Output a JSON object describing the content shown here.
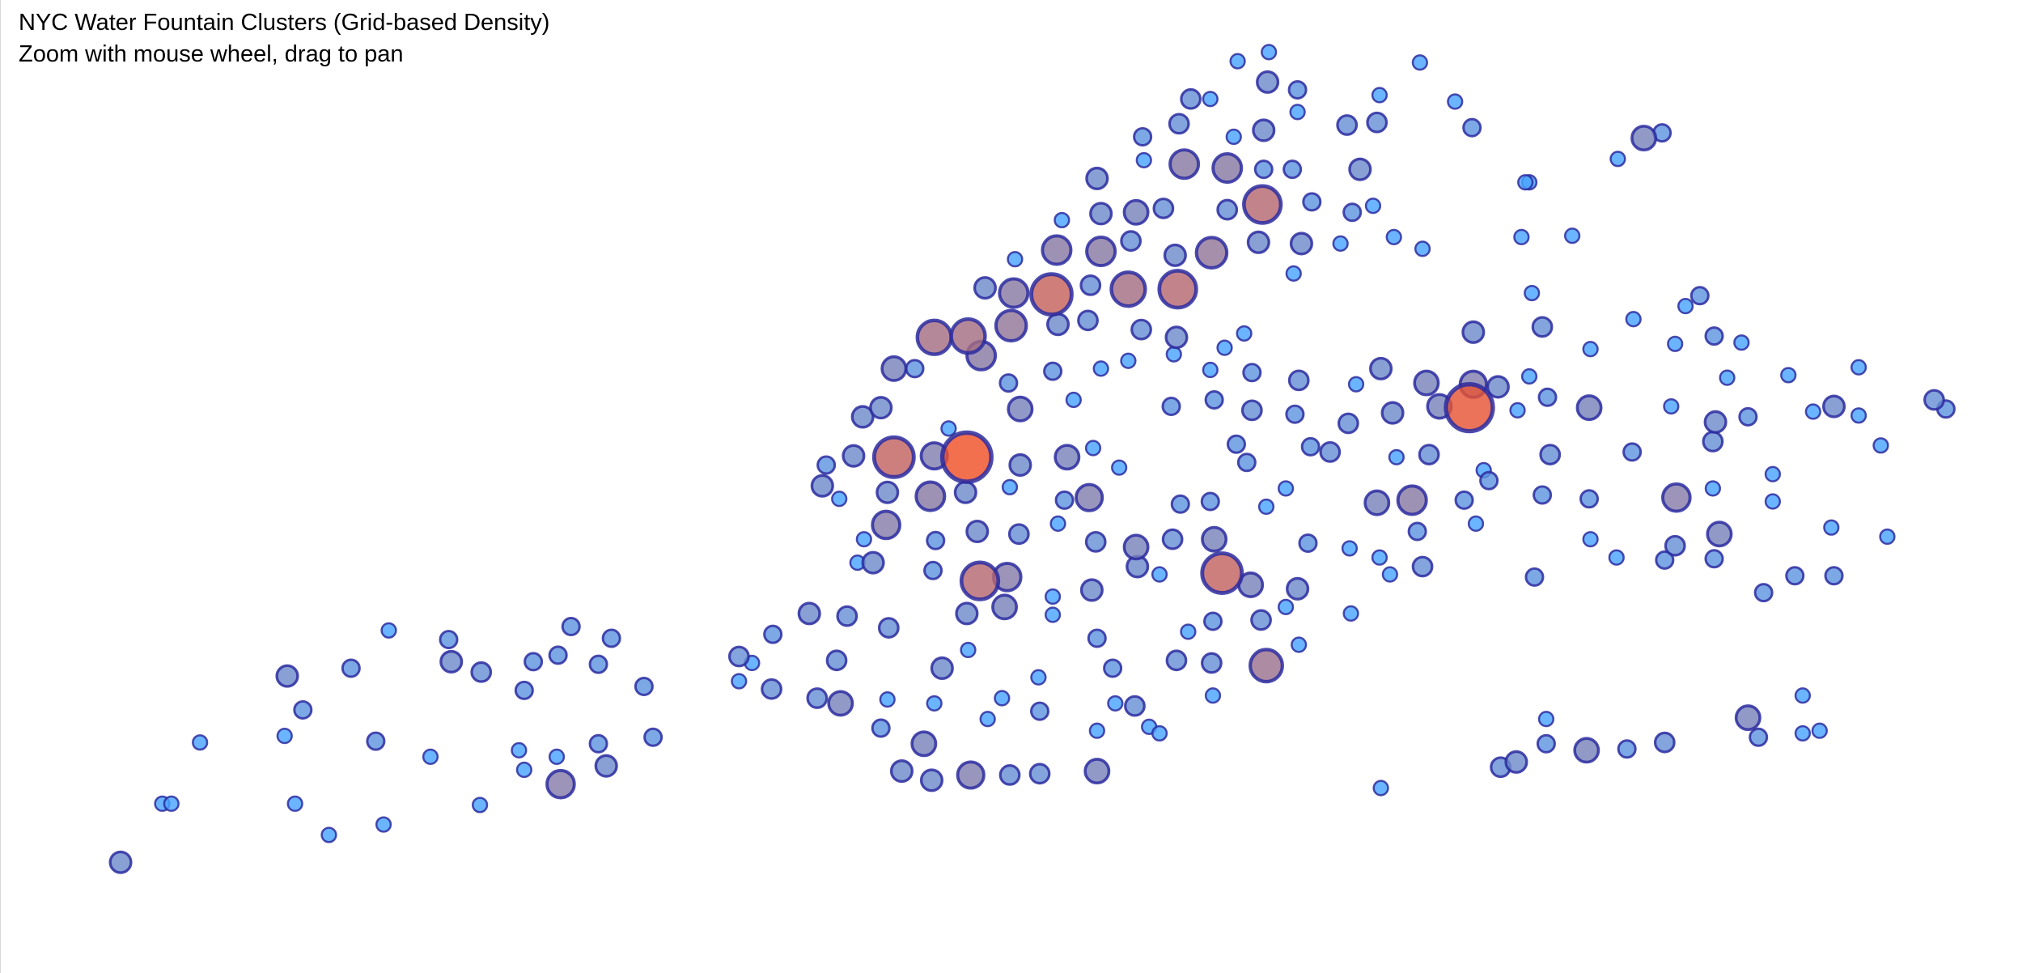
{
  "chart_data": {
    "type": "bubble",
    "title": "NYC Water Fountain Clusters (Grid-based Density)",
    "subtitle": "Zoom with mouse wheel, drag to pan",
    "xlim": [
      -74.3,
      -73.68
    ],
    "ylim": [
      40.6212,
      40.92
    ],
    "colormap": [
      "#4aa3ff",
      "#8c78a0",
      "#f05028"
    ],
    "edge_color": "#2b2ba0",
    "x": [
      -74.2632,
      -74.2504,
      -74.2476,
      -74.2388,
      -74.212,
      -74.2072,
      -74.2128,
      -74.2096,
      -74.1992,
      -74.1924,
      -74.1848,
      -74.1824,
      -74.1808,
      -74.168,
      -74.1624,
      -74.1616,
      -74.1524,
      -74.1528,
      -74.1408,
      -74.1392,
      -74.1392,
      -74.1364,
      -74.1292,
      -74.1288,
      -74.128,
      -74.1248,
      -74.1164,
      -74.1164,
      -74.114,
      -74.1124,
      -74.1024,
      -74.0996,
      -74.0732,
      -74.0732,
      -74.0692,
      -74.0632,
      -74.0628,
      -74.0516,
      -74.0492,
      -74.042,
      -74.0432,
      -74.04,
      -74.0296,
      -74.0276,
      -74.0272,
      -74.0232,
      -74.0164,
      -74.014,
      -74.0132,
      -74.0108,
      -74.0028,
      -74.002,
      -73.9968,
      -73.9924,
      -73.99,
      -73.9812,
      -73.9808,
      -73.9808,
      -73.9768,
      -73.9768,
      -73.9632,
      -73.9632,
      -73.9632,
      -73.9584,
      -73.9576,
      -73.9516,
      -73.9472,
      -73.944,
      -73.9388,
      -73.9352,
      -73.928,
      -73.9276,
      -73.9276,
      -73.9112,
      -73.9012,
      -74.0476,
      -74.0464,
      -74.0424,
      -74.038,
      -74.0352,
      -74.0296,
      -74.0256,
      -74.0276,
      -74.028,
      -74.0348,
      -74.0368,
      -74.032,
      -74.0256,
      -74.0192,
      -74.0132,
      -74.0028,
      -73.9988,
      -73.9896,
      -73.9976,
      -73.9884,
      -73.9888,
      -73.9772,
      -73.9752,
      -73.9756,
      -73.974,
      -73.9652,
      -73.962,
      -73.962,
      -73.9632,
      -73.966,
      -73.9536,
      -73.9528,
      -73.9512,
      -73.9492,
      -73.9488,
      -73.9428,
      -73.9384,
      -73.9392,
      -73.9388,
      -73.9496,
      -73.938,
      -73.9364,
      -73.9344,
      -73.9284,
      -73.928,
      -73.9232,
      -73.9232,
      -73.9212,
      -73.9124,
      -73.9136,
      -73.912,
      -73.912,
      -73.9108,
      -73.9104,
      -73.92,
      -73.9032,
      -73.9016,
      -73.9016,
      -73.9004,
      -73.9028,
      -73.8972,
      -73.8884,
      -73.8864,
      -73.8824,
      -73.8848,
      -73.8784,
      -73.8772,
      -73.8764,
      -73.872,
      -73.864,
      -73.8632,
      -73.8532,
      -73.848,
      -73.7952,
      -73.7896,
      -73.8032,
      -73.8304,
      -73.8316,
      -74.0132,
      -74.0088,
      -74.0032,
      -74.0036,
      -74.0144,
      -74.0128,
      -74.0136,
      -74.0,
      -73.9992,
      -73.9908,
      -73.9916,
      -74.0032,
      -73.99,
      -73.9868,
      -73.9868,
      -73.9872,
      -73.9904,
      -73.9768,
      -73.9704,
      -73.9724,
      -73.9656,
      -73.9732,
      -73.9752,
      -73.9644,
      -73.9564,
      -73.9636,
      -73.9648,
      -73.962,
      -73.9536,
      -73.9512,
      -73.9508,
      -73.944,
      -73.9404,
      -73.9396,
      -73.9376,
      -73.94,
      -73.9284,
      -73.9272,
      -73.9248,
      -73.916,
      -73.9128,
      -73.9052,
      -73.9016,
      -73.8984,
      -73.9272,
      -73.9284,
      -73.924,
      -73.918,
      -73.9156,
      -73.9156,
      -73.9204,
      -73.9172,
      -73.9112,
      -73.9052,
      -73.9024,
      -73.9012,
      -73.8976,
      -73.8916,
      -73.886,
      -73.8836,
      -73.876,
      -73.8724,
      -73.8712,
      -73.8772,
      -73.8664,
      -73.8612,
      -73.862,
      -73.858,
      -73.8488,
      -73.8476,
      -73.84,
      -73.8476,
      -73.8504,
      -73.8444,
      -73.8428,
      -73.8468,
      -73.8648,
      -73.8632,
      -73.8732,
      -73.8764,
      -73.8856,
      -73.8852,
      -73.876,
      -73.834,
      -73.8304,
      -73.8296,
      -73.8264,
      -73.8248,
      -73.824,
      -73.8264,
      -73.8288,
      -73.8172,
      -73.8328,
      -73.812,
      -73.8116,
      -73.812,
      -73.8116,
      -73.8036,
      -73.7988,
      -73.7984,
      -73.7888,
      -73.7856,
      -73.7852,
      -73.7868,
      -73.7856,
      -73.7824,
      -73.778,
      -73.7736,
      -73.7732,
      -73.774,
      -73.774,
      -73.7736,
      -73.772,
      -73.7652,
      -73.7632,
      -73.7696,
      -73.7556,
      -73.7556,
      -73.7584,
      -73.7508,
      -73.7488,
      -73.7432,
      -73.7376,
      -73.7368,
      -73.7368,
      -73.7292,
      -73.7292,
      -73.7224,
      -73.7204,
      -73.706,
      -73.7024,
      -73.7632,
      -73.76,
      -73.7464,
      -73.7464,
      -73.7412,
      -73.7888,
      -73.8004,
      -73.8128,
      -73.8252,
      -73.8252,
      -73.8344,
      -73.8392
    ],
    "y": [
      40.6552,
      40.6732,
      40.6732,
      40.692,
      40.7124,
      40.702,
      40.694,
      40.6732,
      40.6636,
      40.7148,
      40.6924,
      40.6668,
      40.7264,
      40.6876,
      40.7236,
      40.7168,
      40.7136,
      40.6728,
      40.6896,
      40.6836,
      40.708,
      40.7168,
      40.6876,
      40.7188,
      40.6792,
      40.7276,
      40.716,
      40.6916,
      40.6848,
      40.724,
      40.7092,
      40.6936,
      40.7184,
      40.7108,
      40.7164,
      40.7084,
      40.7252,
      40.7316,
      40.7056,
      40.704,
      40.7172,
      40.7308,
      40.6964,
      40.7052,
      40.7272,
      40.6832,
      40.6916,
      40.6804,
      40.704,
      40.7148,
      40.7204,
      40.682,
      40.6992,
      40.7056,
      40.682,
      40.712,
      40.7016,
      40.6824,
      40.7312,
      40.7368,
      40.6832,
      40.724,
      40.6956,
      40.7148,
      40.704,
      40.7032,
      40.6968,
      40.6948,
      40.7172,
      40.726,
      40.7164,
      40.7064,
      40.7292,
      40.7156,
      40.722,
      40.7708,
      40.7772,
      40.7668,
      40.78,
      40.792,
      40.7948,
      40.7796,
      40.7688,
      40.7588,
      40.7544,
      40.7472,
      40.7472,
      40.8068,
      40.8068,
      40.8164,
      40.8168,
      40.8108,
      40.82,
      40.8316,
      40.8404,
      40.83,
      40.8296,
      40.8204,
      40.8432,
      40.8524,
      40.8324,
      40.8428,
      40.8544,
      40.8652,
      40.8216,
      40.8312,
      40.846,
      40.8548,
      40.878,
      40.8708,
      40.856,
      40.8312,
      40.8416,
      40.8164,
      40.8188,
      40.882,
      40.8696,
      40.8896,
      40.8896,
      40.8424,
      40.8684,
      40.8556,
      40.878,
      40.8572,
      40.8456,
      40.868,
      40.88,
      40.8948,
      40.904,
      40.9012,
      40.868,
      40.8924,
      40.8856,
      40.8452,
      40.836,
      40.858,
      40.8452,
      40.8816,
      40.868,
      40.8548,
      40.8568,
      40.8824,
      40.8908,
      40.8472,
      40.9008,
      40.8436,
      40.8888,
      40.8808,
      40.8776,
      40.8792,
      40.8712,
      40.864,
      40.864,
      40.78,
      40.7884,
      40.7796,
      40.7688,
      40.7676,
      40.754,
      40.7448,
      40.7568,
      40.7416,
      40.7428,
      40.7336,
      40.7316,
      40.7704,
      40.7772,
      40.7944,
      40.756,
      40.8024,
      40.806,
      40.7972,
      40.7796,
      40.7672,
      40.7664,
      40.7592,
      40.7824,
      40.7764,
      40.7536,
      40.7388,
      40.8068,
      40.8092,
      40.752,
      40.746,
      40.7436,
      40.7952,
      40.8112,
      40.7652,
      40.7544,
      40.766,
      40.7544,
      40.744,
      40.7404,
      40.7296,
      40.7336,
      40.7392,
      40.7532,
      40.7972,
      40.8064,
      40.8132,
      40.8176,
      40.8056,
      40.794,
      40.7836,
      40.778,
      40.7644,
      40.77,
      40.7928,
      40.8032,
      40.7828,
      40.7812,
      40.79,
      40.802,
      40.8068,
      40.7932,
      40.7796,
      40.7656,
      40.7664,
      40.7804,
      40.8024,
      40.7952,
      40.7948,
      40.802,
      40.8012,
      40.818,
      40.7664,
      40.7756,
      40.7724,
      40.7592,
      40.7568,
      40.746,
      40.7436,
      40.7488,
      40.7516,
      40.7316,
      40.678,
      40.794,
      40.8044,
      40.83,
      40.8196,
      40.798,
      40.7804,
      40.768,
      40.7428,
      40.8476,
      40.8472,
      40.7948,
      40.8128,
      40.7668,
      40.7544,
      40.7488,
      40.7812,
      40.822,
      40.748,
      40.7524,
      40.7672,
      40.7952,
      40.8144,
      40.826,
      40.8292,
      40.8168,
      40.7904,
      40.7844,
      40.77,
      40.7484,
      40.756,
      40.8148,
      40.792,
      40.804,
      40.7744,
      40.766,
      40.738,
      40.8048,
      40.7432,
      40.7936,
      40.758,
      40.7432,
      40.7952,
      40.8072,
      40.7924,
      40.7832,
      40.7552,
      40.7972,
      40.7944,
      40.6996,
      40.6936,
      40.7064,
      40.6948,
      40.6956,
      40.692,
      40.69,
      40.6896,
      40.6916,
      40.6992,
      40.686,
      40.6844
    ],
    "sizes": [
      4,
      1,
      1,
      1,
      4,
      2,
      1,
      1,
      1,
      2,
      2,
      1,
      1,
      1,
      2,
      4,
      3,
      1,
      1,
      1,
      2,
      2,
      1,
      2,
      9,
      2,
      2,
      2,
      4,
      2,
      2,
      2,
      3,
      1,
      1,
      3,
      2,
      4,
      3,
      6,
      3,
      3,
      2,
      1,
      3,
      4,
      6,
      4,
      1,
      4,
      1,
      8,
      1,
      1,
      3,
      1,
      2,
      3,
      1,
      1,
      6,
      2,
      1,
      2,
      1,
      3,
      1,
      1,
      3,
      1,
      3,
      1,
      2,
      14,
      1,
      4,
      2,
      1,
      4,
      4,
      4,
      24,
      4,
      9,
      1,
      1,
      4,
      6,
      2,
      16,
      16,
      10,
      12,
      4,
      1,
      10,
      25,
      4,
      10,
      1,
      3,
      10,
      4,
      4,
      3,
      16,
      3,
      6,
      2,
      1,
      3,
      20,
      4,
      4,
      3,
      3,
      10,
      3,
      1,
      12,
      10,
      3,
      1,
      20,
      4,
      2,
      4,
      4,
      1,
      1,
      2,
      2,
      1,
      4,
      1,
      2,
      1,
      3,
      4,
      2,
      1,
      3,
      1,
      1,
      1,
      1,
      1,
      2,
      6,
      2,
      1,
      1,
      1,
      8,
      1,
      40,
      4,
      10,
      2,
      2,
      4,
      20,
      9,
      6,
      4,
      1,
      4,
      6,
      3,
      2,
      2,
      1,
      6,
      8,
      2,
      1,
      1,
      1,
      3,
      4,
      1,
      1,
      6,
      4,
      1,
      2,
      1,
      2,
      3,
      2,
      6,
      24,
      6,
      3,
      1,
      4,
      2,
      2,
      1,
      1,
      1,
      2,
      3,
      2,
      2,
      1,
      1,
      2,
      3,
      2,
      3,
      3,
      1,
      4,
      4,
      1,
      6,
      10,
      3,
      6,
      6,
      36,
      8,
      4,
      4,
      2,
      1,
      2,
      1,
      2,
      3,
      1,
      1,
      1,
      1,
      1,
      1,
      1,
      1,
      3,
      2,
      3,
      2,
      2,
      1,
      1,
      6,
      1,
      2,
      1,
      1,
      2,
      1,
      2,
      3,
      9,
      1,
      1,
      1,
      2,
      2,
      4,
      3,
      1,
      2,
      6,
      1,
      2,
      1,
      1,
      1,
      2,
      1,
      2,
      1,
      1,
      2,
      4,
      1,
      1,
      1,
      1,
      3,
      2,
      6,
      2,
      1,
      1,
      1,
      3,
      2,
      6,
      2,
      1,
      4,
      3
    ]
  }
}
